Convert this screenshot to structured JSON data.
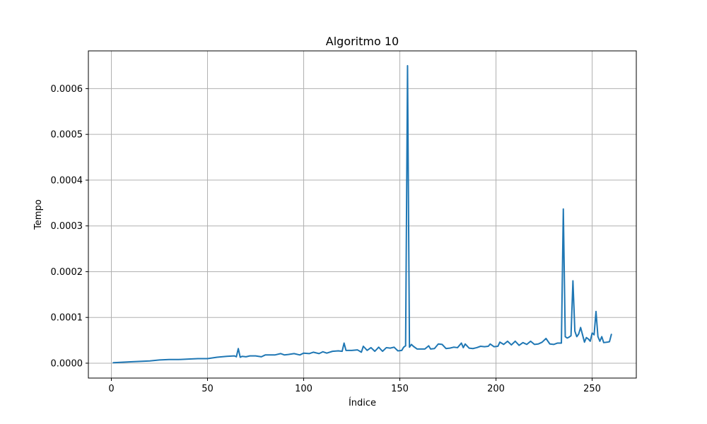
{
  "chart_data": {
    "type": "line",
    "title": "Algoritmo 10",
    "xlabel": "Índice",
    "ylabel": "Tempo",
    "xlim": [
      -11.95,
      272.95
    ],
    "ylim": [
      -3.25e-05,
      0.0006825
    ],
    "xticks": [
      0,
      50,
      100,
      150,
      200,
      250
    ],
    "yticks": [
      0.0,
      0.0001,
      0.0002,
      0.0003,
      0.0004,
      0.0005,
      0.0006
    ],
    "xtick_labels": [
      "0",
      "50",
      "100",
      "150",
      "200",
      "250"
    ],
    "ytick_labels": [
      "0.0000",
      "0.0001",
      "0.0002",
      "0.0003",
      "0.0004",
      "0.0005",
      "0.0006"
    ],
    "grid": true,
    "line_color": "#1f77b4",
    "series": [
      {
        "points": [
          [
            1,
            1e-06
          ],
          [
            10,
            3e-06
          ],
          [
            20,
            5e-06
          ],
          [
            25,
            7e-06
          ],
          [
            30,
            8e-06
          ],
          [
            35,
            8e-06
          ],
          [
            40,
            9e-06
          ],
          [
            45,
            1e-05
          ],
          [
            50,
            1e-05
          ],
          [
            55,
            1.3e-05
          ],
          [
            60,
            1.5e-05
          ],
          [
            64,
            1.6e-05
          ],
          [
            65,
            1.4e-05
          ],
          [
            66,
            3.2e-05
          ],
          [
            67,
            1.3e-05
          ],
          [
            68,
            1.5e-05
          ],
          [
            70,
            1.4e-05
          ],
          [
            72,
            1.6e-05
          ],
          [
            75,
            1.6e-05
          ],
          [
            78,
            1.4e-05
          ],
          [
            80,
            1.8e-05
          ],
          [
            85,
            1.8e-05
          ],
          [
            88,
            2.1e-05
          ],
          [
            90,
            1.8e-05
          ],
          [
            92,
            1.9e-05
          ],
          [
            95,
            2.1e-05
          ],
          [
            98,
            1.8e-05
          ],
          [
            100,
            2.2e-05
          ],
          [
            103,
            2.1e-05
          ],
          [
            105,
            2.4e-05
          ],
          [
            108,
            2.1e-05
          ],
          [
            110,
            2.5e-05
          ],
          [
            112,
            2.2e-05
          ],
          [
            115,
            2.6e-05
          ],
          [
            118,
            2.7e-05
          ],
          [
            120,
            2.6e-05
          ],
          [
            121,
            4.4e-05
          ],
          [
            122,
            2.8e-05
          ],
          [
            125,
            2.8e-05
          ],
          [
            128,
            2.9e-05
          ],
          [
            130,
            2.4e-05
          ],
          [
            131,
            3.7e-05
          ],
          [
            133,
            2.8e-05
          ],
          [
            135,
            3.4e-05
          ],
          [
            137,
            2.6e-05
          ],
          [
            139,
            3.5e-05
          ],
          [
            141,
            2.6e-05
          ],
          [
            143,
            3.4e-05
          ],
          [
            145,
            3.3e-05
          ],
          [
            147,
            3.5e-05
          ],
          [
            149,
            2.7e-05
          ],
          [
            151,
            2.8e-05
          ],
          [
            152,
            3.5e-05
          ],
          [
            153,
            3.8e-05
          ],
          [
            154,
            0.00065
          ],
          [
            155,
            3.5e-05
          ],
          [
            156,
            4.1e-05
          ],
          [
            157,
            3.7e-05
          ],
          [
            159,
            3.1e-05
          ],
          [
            161,
            3.1e-05
          ],
          [
            163,
            3.1e-05
          ],
          [
            165,
            3.8e-05
          ],
          [
            166,
            3.1e-05
          ],
          [
            168,
            3.2e-05
          ],
          [
            170,
            4.2e-05
          ],
          [
            172,
            4.1e-05
          ],
          [
            174,
            3.2e-05
          ],
          [
            176,
            3.3e-05
          ],
          [
            178,
            3.5e-05
          ],
          [
            180,
            3.4e-05
          ],
          [
            182,
            4.4e-05
          ],
          [
            183,
            3.4e-05
          ],
          [
            184,
            4.2e-05
          ],
          [
            186,
            3.3e-05
          ],
          [
            188,
            3.2e-05
          ],
          [
            190,
            3.4e-05
          ],
          [
            192,
            3.7e-05
          ],
          [
            194,
            3.6e-05
          ],
          [
            196,
            3.7e-05
          ],
          [
            197,
            4.2e-05
          ],
          [
            199,
            3.6e-05
          ],
          [
            201,
            3.7e-05
          ],
          [
            202,
            4.6e-05
          ],
          [
            204,
            4.1e-05
          ],
          [
            206,
            4.8e-05
          ],
          [
            208,
            4e-05
          ],
          [
            210,
            4.8e-05
          ],
          [
            212,
            3.9e-05
          ],
          [
            214,
            4.5e-05
          ],
          [
            216,
            4.1e-05
          ],
          [
            218,
            4.8e-05
          ],
          [
            220,
            4.1e-05
          ],
          [
            222,
            4.2e-05
          ],
          [
            224,
            4.6e-05
          ],
          [
            226,
            5.4e-05
          ],
          [
            228,
            4.2e-05
          ],
          [
            230,
            4.1e-05
          ],
          [
            232,
            4.4e-05
          ],
          [
            234,
            4.4e-05
          ],
          [
            235,
            0.000337
          ],
          [
            236,
            5.8e-05
          ],
          [
            237,
            5.5e-05
          ],
          [
            238,
            5.7e-05
          ],
          [
            239,
            6e-05
          ],
          [
            240,
            0.00018
          ],
          [
            241,
            7e-05
          ],
          [
            242,
            5.8e-05
          ],
          [
            243,
            6.4e-05
          ],
          [
            244,
            7.8e-05
          ],
          [
            245,
            6.2e-05
          ],
          [
            246,
            4.6e-05
          ],
          [
            247,
            5.6e-05
          ],
          [
            248,
            5.3e-05
          ],
          [
            249,
            4.8e-05
          ],
          [
            250,
            6.6e-05
          ],
          [
            251,
            6.2e-05
          ],
          [
            252,
            0.000113
          ],
          [
            253,
            5.8e-05
          ],
          [
            254,
            4.8e-05
          ],
          [
            255,
            5.8e-05
          ],
          [
            256,
            4.5e-05
          ],
          [
            258,
            4.6e-05
          ],
          [
            259,
            4.7e-05
          ],
          [
            260,
            6.3e-05
          ]
        ]
      }
    ]
  }
}
